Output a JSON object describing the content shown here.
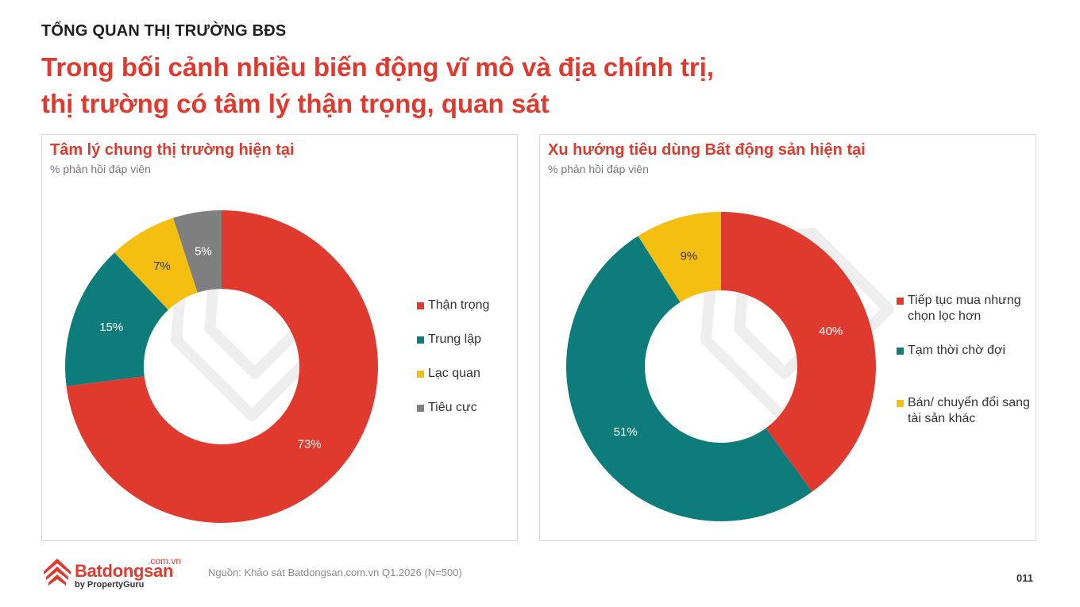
{
  "header": {
    "section": "TỔNG QUAN THỊ TRƯỜNG BĐS",
    "headline_line1": "Trong bối cảnh nhiều biến động vĩ mô và địa chính trị,",
    "headline_line2": "thị trường có tâm lý thận trọng, quan sát"
  },
  "chart_data": [
    {
      "type": "pie",
      "title": "Tâm lý chung thị trường hiện tại",
      "subtitle": "% phản hồi đáp viên",
      "categories": [
        "Thận trọng",
        "Trung lập",
        "Lạc quan",
        "Tiêu cực"
      ],
      "values": [
        73,
        15,
        7,
        5
      ],
      "data_labels": [
        "73%",
        "15%",
        "7%",
        "5%"
      ],
      "colors": [
        "#e03a2f",
        "#0e7c7b",
        "#f5bf12",
        "#7f7f7f"
      ],
      "donut": true,
      "legend": "right"
    },
    {
      "type": "pie",
      "title": "Xu hướng tiêu dùng Bất động sản hiện tại",
      "subtitle": "% phản hồi đáp viên",
      "categories": [
        "Tiếp tục mua nhưng chọn lọc hơn",
        "Tạm thời chờ đợi",
        "Bán/ chuyển đổi sang tài sản khác"
      ],
      "values": [
        40,
        51,
        9
      ],
      "data_labels": [
        "40%",
        "51%",
        "9%"
      ],
      "colors": [
        "#e03a2f",
        "#0e7c7b",
        "#f5bf12"
      ],
      "donut": true,
      "legend": "right"
    }
  ],
  "footer": {
    "logo_name": "Batdongsan",
    "logo_domain": ".com.vn",
    "logo_by": "by PropertyGuru",
    "source": "Nguồn: Khảo sát Batdongsan.com.vn Q1.2026 (N=500)",
    "page": "011"
  }
}
